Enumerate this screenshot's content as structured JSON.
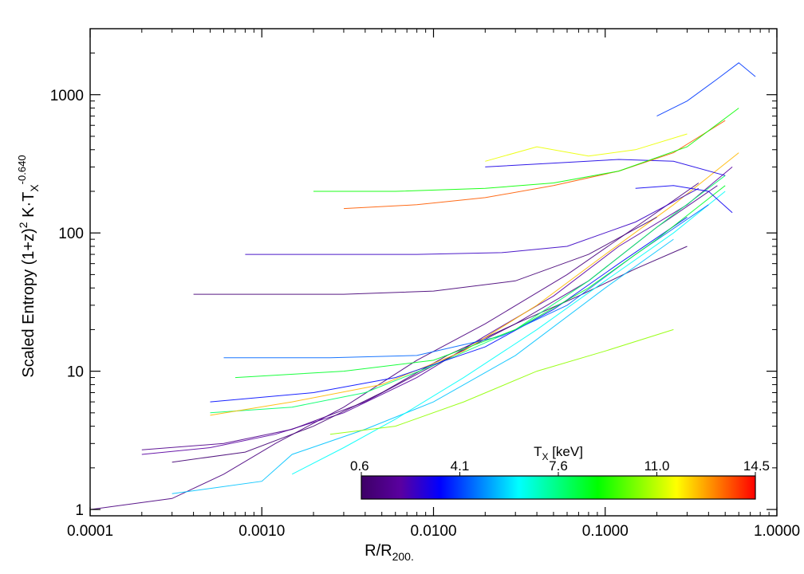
{
  "chart_data": {
    "type": "line",
    "title": "",
    "xlabel": {
      "main": "R/R",
      "sub": "200."
    },
    "ylabel": {
      "main": "Scaled Entropy (1+z)",
      "sup1": "2",
      "mid": " K·T",
      "sub": "X",
      "sup2": "-0.640"
    },
    "x_scale": "log",
    "y_scale": "log",
    "xlim": [
      0.0001,
      1.0
    ],
    "ylim": [
      0.9,
      3000
    ],
    "x_ticks": [
      {
        "value": 0.0001,
        "label": "0.0001"
      },
      {
        "value": 0.001,
        "label": "0.0010"
      },
      {
        "value": 0.01,
        "label": "0.0100"
      },
      {
        "value": 0.1,
        "label": "0.1000"
      },
      {
        "value": 1.0,
        "label": "1.0000"
      }
    ],
    "y_ticks": [
      {
        "value": 1,
        "label": "1"
      },
      {
        "value": 10,
        "label": "10"
      },
      {
        "value": 100,
        "label": "100"
      },
      {
        "value": 1000,
        "label": "1000"
      }
    ],
    "grid": false,
    "colorbar": {
      "title_main": "T",
      "title_sub": "X",
      "title_rest": " [keV]",
      "placement": "bottom-right inset",
      "min": 0.6,
      "max": 14.5,
      "tick_labels": [
        "0.6",
        "4.1",
        "7.6",
        "11.0",
        "14.5"
      ],
      "colors": [
        "#3d0066",
        "#5a00a0",
        "#0000ff",
        "#0080ff",
        "#00ffff",
        "#00ff80",
        "#00ff00",
        "#80ff00",
        "#ffff00",
        "#ff8000",
        "#ff0000"
      ]
    },
    "series_note": "Several hundred cluster entropy profiles, each colored by its temperature T_X",
    "series": [
      {
        "tx": 1.2,
        "x": [
          0.0001,
          0.0003,
          0.0006,
          0.0012,
          0.003,
          0.008,
          0.02,
          0.06,
          0.15,
          0.35
        ],
        "y": [
          1.0,
          1.2,
          1.8,
          3.0,
          5.5,
          12,
          22,
          50,
          110,
          230
        ]
      },
      {
        "tx": 2.0,
        "x": [
          0.0002,
          0.0005,
          0.0012,
          0.003,
          0.008,
          0.02,
          0.05,
          0.12,
          0.3,
          0.55
        ],
        "y": [
          2.5,
          2.8,
          3.5,
          5,
          9,
          18,
          35,
          80,
          160,
          300
        ]
      },
      {
        "tx": 1.5,
        "x": [
          0.0002,
          0.0006,
          0.0015,
          0.004,
          0.01,
          0.03,
          0.08,
          0.2,
          0.45
        ],
        "y": [
          2.7,
          3.0,
          3.8,
          6,
          11,
          22,
          45,
          110,
          220
        ]
      },
      {
        "tx": 0.9,
        "x": [
          0.0003,
          0.0008,
          0.002,
          0.005,
          0.012,
          0.03,
          0.07,
          0.15,
          0.3
        ],
        "y": [
          2.2,
          2.6,
          4.0,
          7,
          13,
          22,
          35,
          55,
          80
        ]
      },
      {
        "tx": 5.5,
        "x": [
          0.0003,
          0.001,
          0.0015,
          0.004,
          0.01,
          0.03,
          0.1,
          0.25
        ],
        "y": [
          1.3,
          1.6,
          2.5,
          3.8,
          6,
          13,
          40,
          90
        ]
      },
      {
        "tx": 6.2,
        "x": [
          0.0015,
          0.003,
          0.006,
          0.015,
          0.04,
          0.1,
          0.25,
          0.5
        ],
        "y": [
          1.8,
          2.8,
          4.5,
          9,
          20,
          45,
          100,
          200
        ]
      },
      {
        "tx": 10.5,
        "x": [
          0.0025,
          0.006,
          0.015,
          0.04,
          0.1,
          0.25
        ],
        "y": [
          3.5,
          4.0,
          6,
          10,
          14,
          20
        ]
      },
      {
        "tx": 7.8,
        "x": [
          0.0005,
          0.0015,
          0.004,
          0.01,
          0.03,
          0.08,
          0.2,
          0.5
        ],
        "y": [
          5,
          5.5,
          7,
          11,
          20,
          45,
          110,
          260
        ]
      },
      {
        "tx": 12.5,
        "x": [
          0.0005,
          0.0015,
          0.005,
          0.015,
          0.04,
          0.1,
          0.25,
          0.6
        ],
        "y": [
          4.8,
          6,
          8,
          14,
          30,
          70,
          160,
          380
        ]
      },
      {
        "tx": 3.5,
        "x": [
          0.0005,
          0.002,
          0.006,
          0.02,
          0.05,
          0.12,
          0.3
        ],
        "y": [
          6,
          7,
          9,
          15,
          28,
          60,
          130
        ]
      },
      {
        "tx": 4.5,
        "x": [
          0.0006,
          0.0025,
          0.008,
          0.025,
          0.06,
          0.15,
          0.4
        ],
        "y": [
          12.5,
          12.5,
          13,
          18,
          30,
          70,
          160
        ]
      },
      {
        "tx": 8.5,
        "x": [
          0.0007,
          0.003,
          0.01,
          0.03,
          0.08,
          0.2,
          0.5
        ],
        "y": [
          9,
          10,
          12,
          20,
          40,
          90,
          220
        ]
      },
      {
        "tx": 1.0,
        "x": [
          0.0004,
          0.001,
          0.003,
          0.01,
          0.03,
          0.08,
          0.2
        ],
        "y": [
          36,
          36,
          36,
          38,
          45,
          70,
          130
        ]
      },
      {
        "tx": 2.5,
        "x": [
          0.0008,
          0.0025,
          0.008,
          0.025,
          0.06,
          0.15,
          0.35
        ],
        "y": [
          70,
          70,
          70,
          72,
          80,
          120,
          210
        ]
      },
      {
        "tx": 11.5,
        "x": [
          0.02,
          0.04,
          0.08,
          0.15,
          0.3
        ],
        "y": [
          330,
          420,
          360,
          400,
          520
        ]
      },
      {
        "tx": 3.0,
        "x": [
          0.02,
          0.05,
          0.12,
          0.25,
          0.5
        ],
        "y": [
          300,
          320,
          340,
          330,
          260
        ]
      },
      {
        "tx": 4.0,
        "x": [
          0.2,
          0.3,
          0.45,
          0.6,
          0.75
        ],
        "y": [
          700,
          900,
          1300,
          1700,
          1350
        ]
      },
      {
        "tx": 3.2,
        "x": [
          0.15,
          0.25,
          0.4,
          0.55
        ],
        "y": [
          210,
          220,
          200,
          140
        ]
      },
      {
        "tx": 13.5,
        "x": [
          0.003,
          0.008,
          0.02,
          0.05,
          0.12,
          0.25,
          0.5
        ],
        "y": [
          150,
          160,
          180,
          220,
          280,
          380,
          650
        ]
      },
      {
        "tx": 9.0,
        "x": [
          0.002,
          0.006,
          0.02,
          0.05,
          0.12,
          0.3,
          0.6
        ],
        "y": [
          200,
          200,
          210,
          230,
          280,
          420,
          800
        ]
      }
    ]
  }
}
